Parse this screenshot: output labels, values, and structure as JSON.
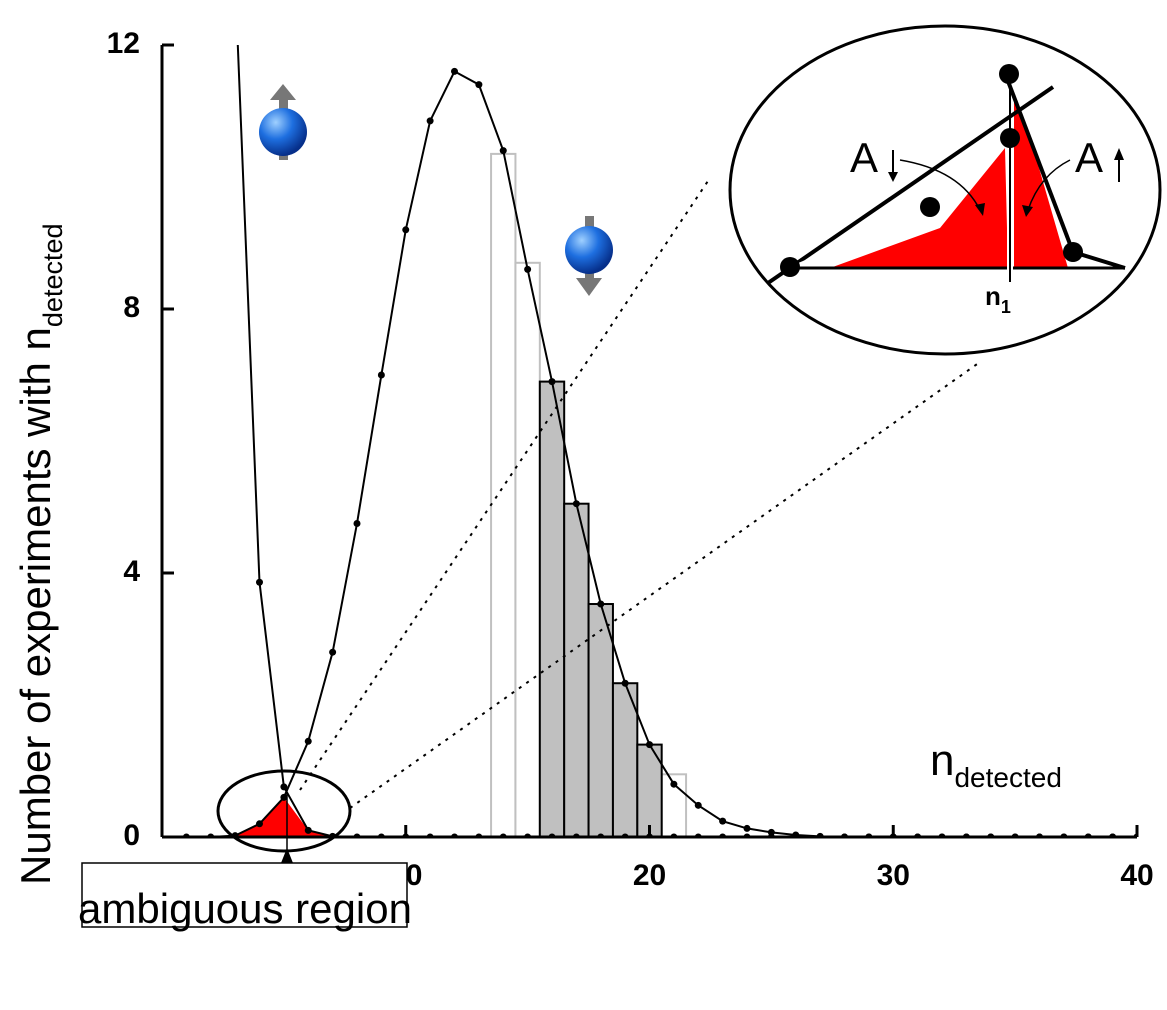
{
  "chart_data": {
    "type": "line",
    "x": [
      1,
      2,
      3,
      4,
      5,
      6,
      7,
      8,
      9,
      10,
      11,
      12,
      13,
      14,
      15,
      16,
      17,
      18,
      19,
      20,
      21,
      22,
      23,
      24,
      25,
      26,
      27,
      28,
      29,
      30,
      31,
      32,
      33,
      34,
      35,
      36,
      37,
      38,
      39,
      40
    ],
    "series": [
      {
        "color": "#000000",
        "values": [
          null,
          null,
          13.0,
          3.86,
          0.76,
          0.1,
          0.01,
          0,
          0,
          0,
          0,
          0,
          0,
          0,
          0,
          0,
          0,
          0,
          0,
          0,
          0,
          0,
          0,
          0,
          0,
          0,
          0,
          0,
          0,
          0,
          0,
          0,
          0,
          0,
          0,
          0,
          0,
          0,
          0,
          0
        ]
      },
      {
        "color": "#000000",
        "values": [
          0,
          0,
          0.02,
          0.2,
          0.6,
          1.45,
          2.8,
          4.75,
          7.0,
          9.2,
          10.85,
          11.6,
          11.4,
          10.4,
          8.6,
          6.9,
          5.05,
          3.53,
          2.33,
          1.4,
          0.8,
          0.48,
          0.24,
          0.13,
          0.07,
          0.03,
          0.01,
          0,
          0,
          0,
          0,
          0,
          0,
          0,
          0,
          0,
          0,
          0,
          0,
          0
        ]
      }
    ],
    "bars": [
      {
        "fill": "#ffffff",
        "stroke": "#c0c0c0",
        "x": [
          14,
          15,
          21
        ],
        "values": [
          10.35,
          8.7,
          0.95
        ]
      },
      {
        "fill": "#c0c0c0",
        "stroke": "#000000",
        "x": [
          16,
          17,
          18,
          19,
          20
        ],
        "values": [
          6.9,
          5.05,
          3.53,
          2.33,
          1.4
        ]
      }
    ],
    "xlim": [
      0,
      40
    ],
    "ylim": [
      0,
      12
    ],
    "xticks": [
      0,
      10,
      20,
      30,
      40
    ],
    "yticks": [
      0,
      4,
      8,
      12
    ],
    "xlabel": "n",
    "xlabel_sub": "detected",
    "ylabel": "Number of experiments with n",
    "ylabel_sub": "detected",
    "annotation": "ambiguous region",
    "inset": {
      "label_left": "A",
      "label_right": "A",
      "marker": "n",
      "marker_sub": "1"
    }
  }
}
